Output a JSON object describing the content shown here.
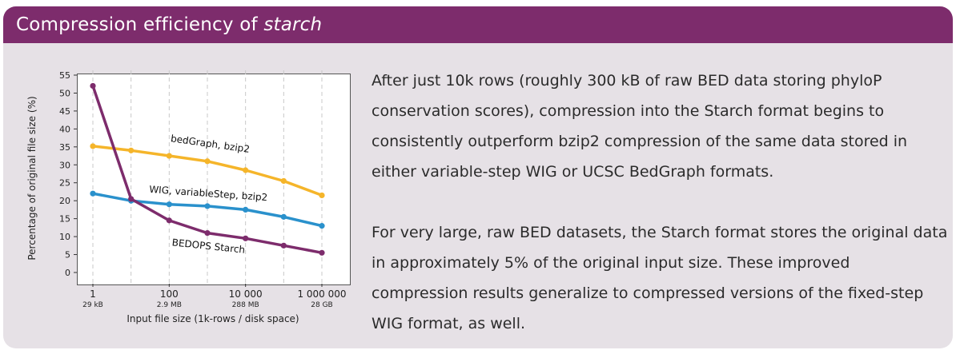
{
  "header": {
    "title_prefix": "Compression efficiency of ",
    "title_emph": "starch"
  },
  "colors": {
    "header_bg": "#7d2c6c",
    "panel_bg": "#e6e1e6",
    "bedgraph": "#f5b52a",
    "wig": "#2a91cc",
    "starch": "#7d2c6c"
  },
  "paragraphs": [
    "After just 10k rows (roughly 300 kB of raw BED data storing phyloP conservation scores), compression into the Starch format begins to consistently outperform bzip2 compression of the same data stored in either variable-step WIG or UCSC BedGraph formats.",
    "For very large, raw BED datasets, the Starch format stores the original data in approximately 5% of the original input size. These improved compression results generalize to compressed versions of the fixed-step WIG format, as well."
  ],
  "chart_data": {
    "type": "line",
    "xlabel": "Input file size (1k-rows / disk space)",
    "ylabel": "Percentage of original file size (%)",
    "x_scale": "log10",
    "ylim": [
      0,
      55
    ],
    "yticks": [
      0,
      5,
      10,
      15,
      20,
      25,
      30,
      35,
      40,
      45,
      50,
      55
    ],
    "xticks": [
      {
        "x": 1,
        "label": "1",
        "sublabel": "29 kB"
      },
      {
        "x": 100,
        "label": "100",
        "sublabel": "2.9 MB"
      },
      {
        "x": 10000,
        "label": "10 000",
        "sublabel": "288 MB"
      },
      {
        "x": 1000000,
        "label": "1 000 000",
        "sublabel": "28 GB"
      }
    ],
    "grid_vertical_dashed_x": [
      1,
      10,
      100,
      1000,
      10000,
      100000,
      1000000
    ],
    "x": [
      1,
      10,
      100,
      1000,
      10000,
      100000,
      1000000
    ],
    "series": [
      {
        "name": "bedGraph, bzip2",
        "color": "#f5b52a",
        "values": [
          35.2,
          34,
          32.5,
          31,
          28.5,
          25.5,
          21.5
        ]
      },
      {
        "name": "WIG, variableStep, bzip2",
        "color": "#2a91cc",
        "values": [
          22,
          20,
          19,
          18.5,
          17.5,
          15.5,
          13
        ]
      },
      {
        "name": "BEDOPS Starch",
        "color": "#7d2c6c",
        "values": [
          52,
          20.5,
          14.5,
          11,
          9.5,
          7.5,
          5.5
        ]
      }
    ]
  }
}
